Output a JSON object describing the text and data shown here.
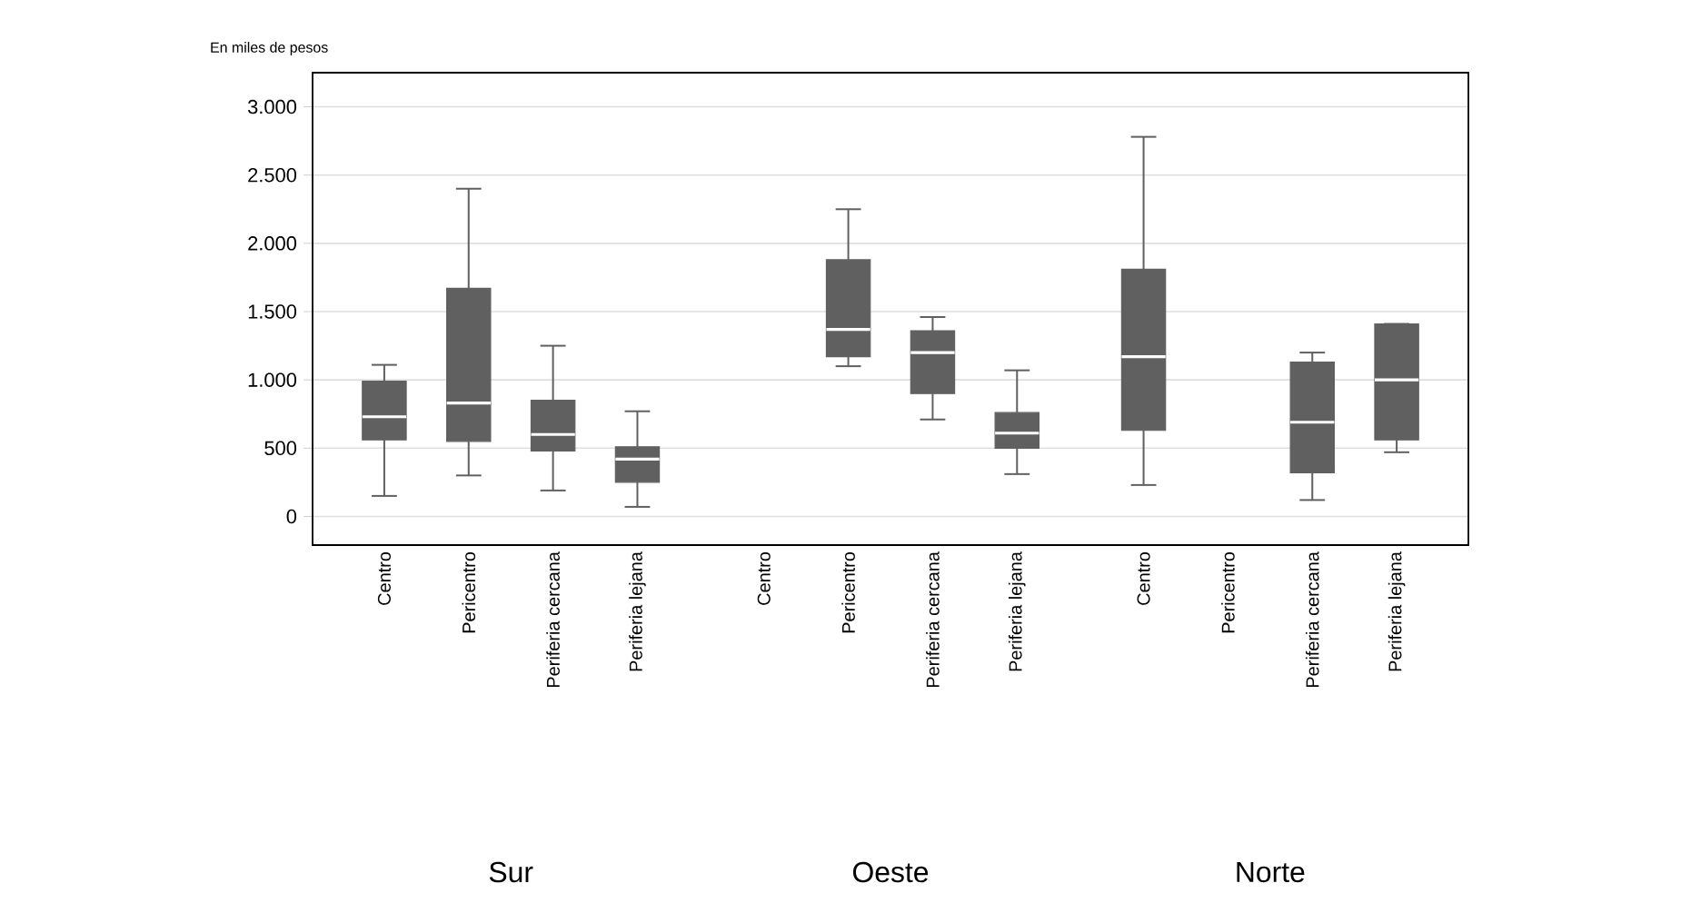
{
  "chart_data": {
    "type": "box",
    "ylabel": "En miles de pesos",
    "categories": [
      "Centro",
      "Pericentro",
      "Periferia cercana",
      "Periferia lejana",
      "Centro",
      "Pericentro",
      "Periferia cercana",
      "Periferia lejana",
      "Centro",
      "Pericentro",
      "Periferia cercana",
      "Periferia lejana"
    ],
    "boxes": [
      {
        "low": 150,
        "q1": 560,
        "median": 730,
        "q3": 990,
        "high": 1110
      },
      {
        "low": 300,
        "q1": 550,
        "median": 830,
        "q3": 1670,
        "high": 2400
      },
      {
        "low": 190,
        "q1": 480,
        "median": 600,
        "q3": 850,
        "high": 1250
      },
      {
        "low": 70,
        "q1": 250,
        "median": 420,
        "q3": 510,
        "high": 770
      },
      null,
      {
        "low": 1100,
        "q1": 1170,
        "median": 1370,
        "q3": 1880,
        "high": 2250
      },
      {
        "low": 710,
        "q1": 900,
        "median": 1200,
        "q3": 1360,
        "high": 1460
      },
      {
        "low": 310,
        "q1": 500,
        "median": 610,
        "q3": 760,
        "high": 1070
      },
      {
        "low": 230,
        "q1": 630,
        "median": 1170,
        "q3": 1810,
        "high": 2780
      },
      null,
      {
        "low": 120,
        "q1": 320,
        "median": 690,
        "q3": 1130,
        "high": 1200
      },
      {
        "low": 470,
        "q1": 560,
        "median": 1000,
        "q3": 1410,
        "high": 1410
      }
    ],
    "color": "#606060",
    "ylim": [
      -210,
      3250
    ],
    "yticks": [
      {
        "value": 0,
        "label": "0"
      },
      {
        "value": 500,
        "label": "500"
      },
      {
        "value": 1000,
        "label": "1.000"
      },
      {
        "value": 1500,
        "label": "1.500"
      },
      {
        "value": 2000,
        "label": "2.000"
      },
      {
        "value": 2500,
        "label": "2.500"
      },
      {
        "value": 3000,
        "label": "3.000"
      }
    ],
    "grid": "y",
    "annotations": [
      "Sur",
      "Oeste",
      "Norte"
    ]
  }
}
